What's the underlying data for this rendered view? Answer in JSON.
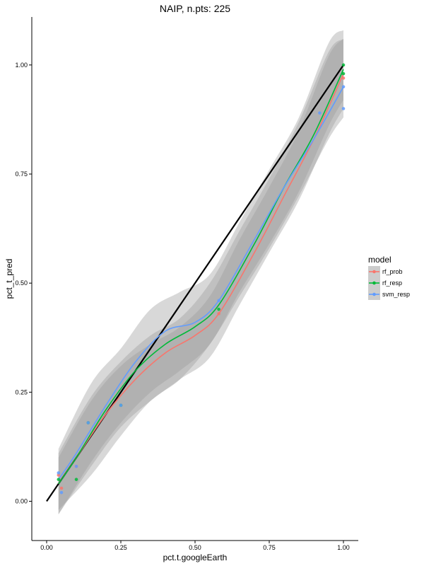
{
  "chart_data": {
    "type": "scatter",
    "title": "NAIP, n.pts: 225",
    "xlabel": "pct.t.googleEarth",
    "ylabel": "pct_t_pred",
    "xlim": [
      -0.05,
      1.05
    ],
    "ylim": [
      -0.09,
      1.11
    ],
    "x_ticks": [
      0.0,
      0.25,
      0.5,
      0.75,
      1.0
    ],
    "x_tick_labels": [
      "0.00",
      "0.25",
      "0.50",
      "0.75",
      "1.00"
    ],
    "y_ticks": [
      0.0,
      0.25,
      0.5,
      0.75,
      1.0
    ],
    "y_tick_labels": [
      "0.00",
      "0.25",
      "0.50",
      "0.75",
      "1.00"
    ],
    "grid": false,
    "legend": {
      "title": "model",
      "position": "right"
    },
    "reference_line": {
      "x": [
        0.0,
        1.0
      ],
      "y": [
        0.0,
        1.0
      ],
      "color": "#000000"
    },
    "series": [
      {
        "name": "rf_prob",
        "color": "#F8766D",
        "points": [
          [
            0.04,
            0.06
          ],
          [
            0.05,
            0.03
          ],
          [
            0.1,
            0.08
          ],
          [
            0.14,
            0.18
          ],
          [
            0.25,
            0.22
          ],
          [
            0.58,
            0.43
          ],
          [
            1.0,
            0.97
          ]
        ],
        "smooth": [
          [
            0.04,
            0.04
          ],
          [
            0.1,
            0.1
          ],
          [
            0.2,
            0.2
          ],
          [
            0.3,
            0.28
          ],
          [
            0.4,
            0.34
          ],
          [
            0.5,
            0.38
          ],
          [
            0.58,
            0.43
          ],
          [
            0.7,
            0.57
          ],
          [
            0.8,
            0.7
          ],
          [
            0.9,
            0.83
          ],
          [
            1.0,
            0.98
          ]
        ],
        "band": [
          [
            0.04,
            -0.03,
            0.1
          ],
          [
            0.15,
            0.08,
            0.23
          ],
          [
            0.25,
            0.17,
            0.31
          ],
          [
            0.35,
            0.23,
            0.36
          ],
          [
            0.45,
            0.28,
            0.4
          ],
          [
            0.55,
            0.33,
            0.47
          ],
          [
            0.65,
            0.45,
            0.6
          ],
          [
            0.75,
            0.57,
            0.72
          ],
          [
            0.85,
            0.69,
            0.85
          ],
          [
            0.95,
            0.84,
            1.02
          ],
          [
            1.0,
            0.9,
            1.06
          ]
        ]
      },
      {
        "name": "rf_resp",
        "color": "#00BA38",
        "points": [
          [
            0.04,
            0.05
          ],
          [
            0.1,
            0.05
          ],
          [
            0.14,
            0.18
          ],
          [
            0.25,
            0.22
          ],
          [
            0.58,
            0.44
          ],
          [
            1.0,
            1.0
          ],
          [
            1.0,
            0.98
          ]
        ],
        "smooth": [
          [
            0.04,
            0.04
          ],
          [
            0.1,
            0.1
          ],
          [
            0.2,
            0.21
          ],
          [
            0.3,
            0.3
          ],
          [
            0.4,
            0.36
          ],
          [
            0.5,
            0.4
          ],
          [
            0.58,
            0.45
          ],
          [
            0.7,
            0.59
          ],
          [
            0.8,
            0.72
          ],
          [
            0.9,
            0.84
          ],
          [
            1.0,
            0.99
          ]
        ],
        "band": [
          [
            0.04,
            -0.03,
            0.11
          ],
          [
            0.15,
            0.09,
            0.24
          ],
          [
            0.25,
            0.18,
            0.32
          ],
          [
            0.35,
            0.25,
            0.38
          ],
          [
            0.45,
            0.3,
            0.42
          ],
          [
            0.55,
            0.36,
            0.5
          ],
          [
            0.65,
            0.48,
            0.62
          ],
          [
            0.75,
            0.59,
            0.74
          ],
          [
            0.85,
            0.71,
            0.87
          ],
          [
            0.95,
            0.86,
            1.03
          ],
          [
            1.0,
            0.92,
            1.06
          ]
        ]
      },
      {
        "name": "svm_resp",
        "color": "#619CFF",
        "points": [
          [
            0.04,
            0.065
          ],
          [
            0.05,
            0.02
          ],
          [
            0.1,
            0.08
          ],
          [
            0.14,
            0.18
          ],
          [
            0.25,
            0.22
          ],
          [
            0.58,
            0.46
          ],
          [
            0.92,
            0.89
          ],
          [
            1.0,
            0.9
          ],
          [
            1.0,
            0.95
          ]
        ],
        "smooth": [
          [
            0.04,
            0.05
          ],
          [
            0.1,
            0.11
          ],
          [
            0.2,
            0.22
          ],
          [
            0.3,
            0.32
          ],
          [
            0.4,
            0.39
          ],
          [
            0.5,
            0.41
          ],
          [
            0.58,
            0.46
          ],
          [
            0.7,
            0.6
          ],
          [
            0.8,
            0.72
          ],
          [
            0.9,
            0.83
          ],
          [
            1.0,
            0.95
          ]
        ],
        "band": [
          [
            0.04,
            -0.02,
            0.12
          ],
          [
            0.15,
            0.06,
            0.27
          ],
          [
            0.25,
            0.15,
            0.35
          ],
          [
            0.35,
            0.23,
            0.44
          ],
          [
            0.45,
            0.28,
            0.48
          ],
          [
            0.55,
            0.36,
            0.52
          ],
          [
            0.65,
            0.47,
            0.64
          ],
          [
            0.75,
            0.58,
            0.76
          ],
          [
            0.85,
            0.7,
            0.88
          ],
          [
            0.95,
            0.83,
            1.05
          ],
          [
            1.0,
            0.88,
            1.08
          ]
        ]
      }
    ]
  }
}
